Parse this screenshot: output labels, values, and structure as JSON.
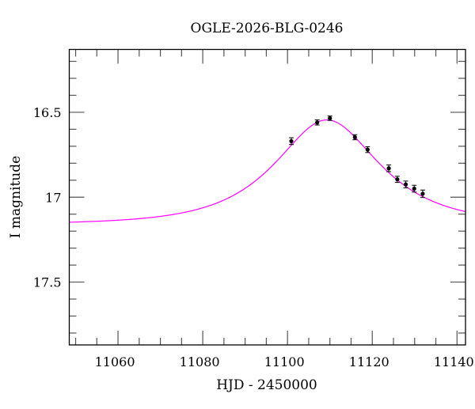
{
  "chart_data": {
    "type": "scatter",
    "title": "OGLE-2026-BLG-0246",
    "xlabel": "HJD - 2450000",
    "ylabel": "I magnitude",
    "xlim": [
      11048.5,
      11142
    ],
    "ylim": [
      16.13,
      17.87
    ],
    "y_inverted": true,
    "x_major_ticks": [
      11060,
      11080,
      11100,
      11120,
      11140
    ],
    "x_minor_step": 5,
    "y_major_ticks": [
      16.5,
      17,
      17.5
    ],
    "y_tick_labels": [
      "16.5",
      "17",
      "17.5"
    ],
    "y_minor_step": 0.1,
    "grid": false,
    "series": [
      {
        "name": "data",
        "color": "#000000",
        "x": [
          11100.9,
          11107.0,
          11110.0,
          11115.9,
          11118.9,
          11123.9,
          11125.9,
          11127.9,
          11129.9,
          11131.9
        ],
        "y": [
          16.67,
          16.56,
          16.535,
          16.647,
          16.72,
          16.83,
          16.895,
          16.925,
          16.95,
          16.98
        ],
        "yerr": [
          0.02,
          0.015,
          0.013,
          0.015,
          0.017,
          0.02,
          0.018,
          0.02,
          0.02,
          0.022
        ]
      },
      {
        "name": "model",
        "color": "#ff00ff",
        "model": {
          "t0": 11109.3,
          "tE": 18.5,
          "u0": 0.655,
          "baseline_mag": 17.16
        }
      }
    ]
  }
}
